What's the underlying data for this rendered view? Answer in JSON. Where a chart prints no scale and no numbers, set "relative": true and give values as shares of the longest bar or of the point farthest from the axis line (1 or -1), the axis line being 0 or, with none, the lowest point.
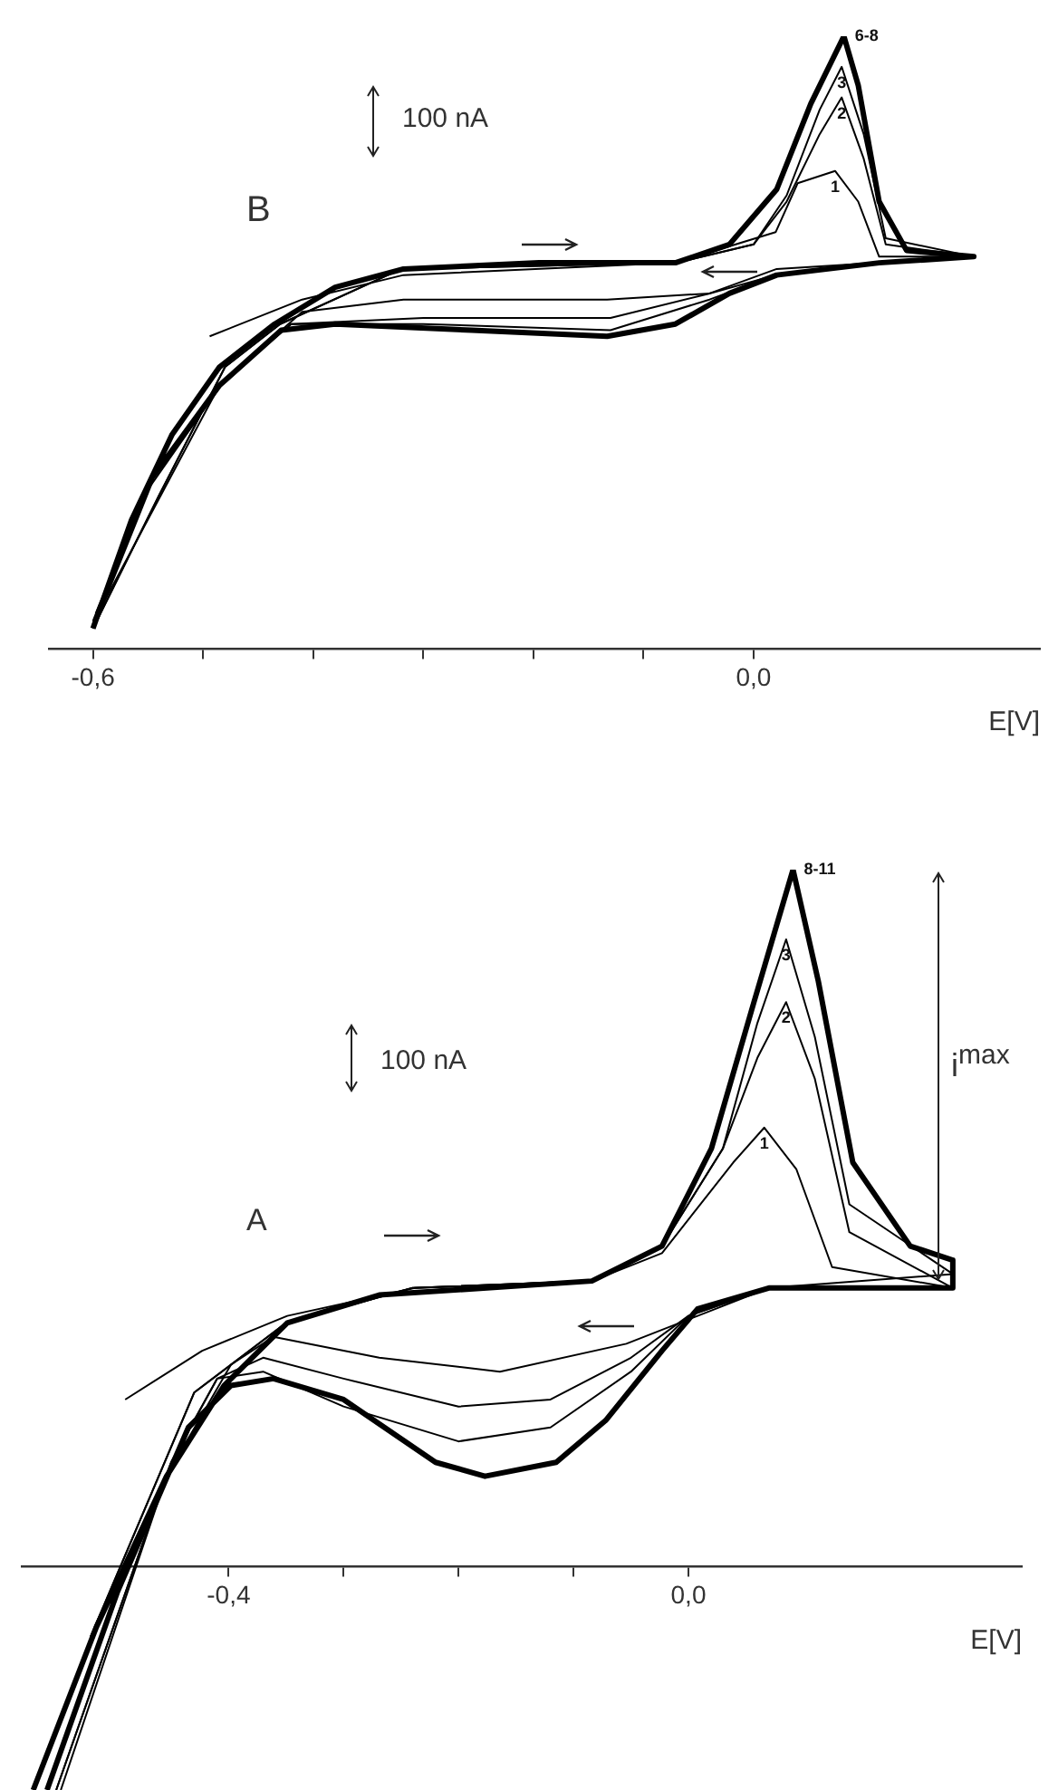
{
  "chart_data": [
    {
      "type": "line",
      "relative": true,
      "xlabel": "E[V]",
      "xlim": [
        -0.64,
        0.26
      ],
      "xticks": [
        {
          "value": -0.6,
          "label": "-0,6"
        },
        {
          "value": -0.5,
          "label": null
        },
        {
          "value": -0.4,
          "label": null
        },
        {
          "value": -0.3,
          "label": null
        },
        {
          "value": -0.2,
          "label": null
        },
        {
          "value": -0.1,
          "label": null
        },
        {
          "value": 0,
          "label": "0,0"
        }
      ],
      "annotations": [
        "B",
        "100 nA"
      ],
      "series": [
        {
          "name": "1",
          "color": "#000000",
          "x": [
            -0.494,
            -0.41,
            -0.318,
            -0.071,
            0.02,
            0.04,
            0.074,
            0.095,
            0.114,
            0.2,
            0.021,
            -0.04,
            -0.133,
            -0.318,
            -0.41,
            -0.485,
            -0.596
          ],
          "values": [
            0.51,
            0.57,
            0.61,
            0.63,
            0.68,
            0.76,
            0.78,
            0.73,
            0.64,
            0.64,
            0.62,
            0.58,
            0.57,
            0.57,
            0.55,
            0.43,
            0.056
          ]
        },
        {
          "name": "2",
          "color": "#000000",
          "x": [
            -0.6,
            -0.54,
            -0.48,
            -0.43,
            -0.32,
            -0.07,
            0,
            0.03,
            0.06,
            0.08,
            0.1,
            0.12,
            0.2,
            0.11,
            0.02,
            -0.04,
            -0.13,
            -0.3,
            -0.42,
            -0.48,
            -0.55,
            -0.6
          ],
          "values": [
            0.033,
            0.25,
            0.46,
            0.53,
            0.62,
            0.63,
            0.66,
            0.73,
            0.84,
            0.9,
            0.8,
            0.66,
            0.64,
            0.63,
            0.61,
            0.58,
            0.54,
            0.54,
            0.53,
            0.44,
            0.26,
            0.04
          ]
        },
        {
          "name": "3",
          "color": "#000000",
          "x": [
            -0.6,
            -0.54,
            -0.48,
            -0.43,
            -0.32,
            -0.07,
            0,
            0.03,
            0.06,
            0.08,
            0.1,
            0.12,
            0.2,
            0.11,
            0.02,
            -0.04,
            -0.13,
            -0.3,
            -0.42,
            -0.48,
            -0.55,
            -0.6
          ],
          "values": [
            0.033,
            0.25,
            0.46,
            0.53,
            0.62,
            0.63,
            0.66,
            0.74,
            0.88,
            0.95,
            0.84,
            0.67,
            0.64,
            0.63,
            0.61,
            0.57,
            0.52,
            0.53,
            0.53,
            0.44,
            0.27,
            0.045
          ]
        },
        {
          "name": "6-8",
          "color": "#000000",
          "x": [
            -0.6,
            -0.565,
            -0.528,
            -0.485,
            -0.435,
            -0.38,
            -0.318,
            -0.195,
            -0.071,
            -0.022,
            0.021,
            0.052,
            0.082,
            0.095,
            0.114,
            0.139,
            0.2,
            0.114,
            0.021,
            -0.022,
            -0.071,
            -0.133,
            -0.256,
            -0.38,
            -0.429,
            -0.485,
            -0.546,
            -0.596
          ],
          "values": [
            0.033,
            0.21,
            0.35,
            0.46,
            0.53,
            0.59,
            0.62,
            0.63,
            0.63,
            0.66,
            0.75,
            0.89,
            1,
            0.92,
            0.73,
            0.65,
            0.64,
            0.63,
            0.61,
            0.58,
            0.53,
            0.51,
            0.52,
            0.53,
            0.52,
            0.43,
            0.28,
            0.056
          ]
        }
      ]
    },
    {
      "type": "line",
      "relative": true,
      "xlabel": "E[V]",
      "xlim": [
        -0.58,
        0.29
      ],
      "xticks": [
        {
          "value": -0.4,
          "label": "-0,4"
        },
        {
          "value": -0.3,
          "label": null
        },
        {
          "value": -0.2,
          "label": null
        },
        {
          "value": -0.1,
          "label": null
        },
        {
          "value": 0,
          "label": "0,0"
        }
      ],
      "annotations": [
        "100 nA",
        "A",
        "i$^{max}$"
      ],
      "series": [
        {
          "name": "1",
          "color": "#000000",
          "x": [
            -0.49,
            -0.423,
            -0.349,
            -0.238,
            -0.084,
            -0.023,
            0.039,
            0.066,
            0.094,
            0.125,
            0.23,
            0.07,
            0.008,
            -0.054,
            -0.164,
            -0.269,
            -0.361,
            -0.398,
            -0.454,
            -0.546
          ],
          "values": [
            0.24,
            0.31,
            0.36,
            0.4,
            0.41,
            0.45,
            0.58,
            0.63,
            0.57,
            0.43,
            0.4,
            0.4,
            0.36,
            0.32,
            0.28,
            0.3,
            0.33,
            0.29,
            0.13,
            -0.32
          ]
        },
        {
          "name": "2",
          "color": "#000000",
          "x": [
            -0.52,
            -0.43,
            -0.35,
            -0.24,
            -0.084,
            -0.023,
            0.03,
            0.06,
            0.085,
            0.11,
            0.14,
            0.23,
            0.07,
            0,
            -0.05,
            -0.12,
            -0.2,
            -0.3,
            -0.37,
            -0.41,
            -0.45,
            -0.55
          ],
          "values": [
            -0.1,
            0.25,
            0.35,
            0.4,
            0.41,
            0.46,
            0.6,
            0.73,
            0.81,
            0.7,
            0.48,
            0.4,
            0.4,
            0.36,
            0.3,
            0.24,
            0.23,
            0.27,
            0.3,
            0.27,
            0.15,
            -0.32
          ]
        },
        {
          "name": "3",
          "color": "#000000",
          "x": [
            -0.52,
            -0.43,
            -0.35,
            -0.24,
            -0.084,
            -0.023,
            0.03,
            0.06,
            0.085,
            0.11,
            0.14,
            0.23,
            0.07,
            0,
            -0.05,
            -0.12,
            -0.2,
            -0.3,
            -0.37,
            -0.41,
            -0.45,
            -0.55
          ],
          "values": [
            -0.1,
            0.25,
            0.35,
            0.4,
            0.41,
            0.46,
            0.6,
            0.78,
            0.9,
            0.76,
            0.52,
            0.42,
            0.4,
            0.36,
            0.28,
            0.2,
            0.18,
            0.23,
            0.28,
            0.27,
            0.15,
            -0.32
          ]
        },
        {
          "name": "8-11",
          "color": "#000000",
          "x": [
            -0.57,
            -0.515,
            -0.454,
            -0.404,
            -0.349,
            -0.269,
            -0.084,
            -0.023,
            0.02,
            0.057,
            0.091,
            0.113,
            0.143,
            0.193,
            0.23,
            0.23,
            0.07,
            0.008,
            -0.023,
            -0.072,
            -0.115,
            -0.177,
            -0.22,
            -0.3,
            -0.361,
            -0.398,
            -0.435,
            -0.497,
            -0.558
          ],
          "values": [
            -0.32,
            -0.086,
            0.13,
            0.26,
            0.35,
            0.39,
            0.41,
            0.46,
            0.6,
            0.81,
            1,
            0.84,
            0.58,
            0.46,
            0.44,
            0.4,
            0.4,
            0.37,
            0.31,
            0.21,
            0.15,
            0.13,
            0.15,
            0.24,
            0.27,
            0.26,
            0.2,
            -0.037,
            -0.32
          ]
        }
      ]
    }
  ]
}
